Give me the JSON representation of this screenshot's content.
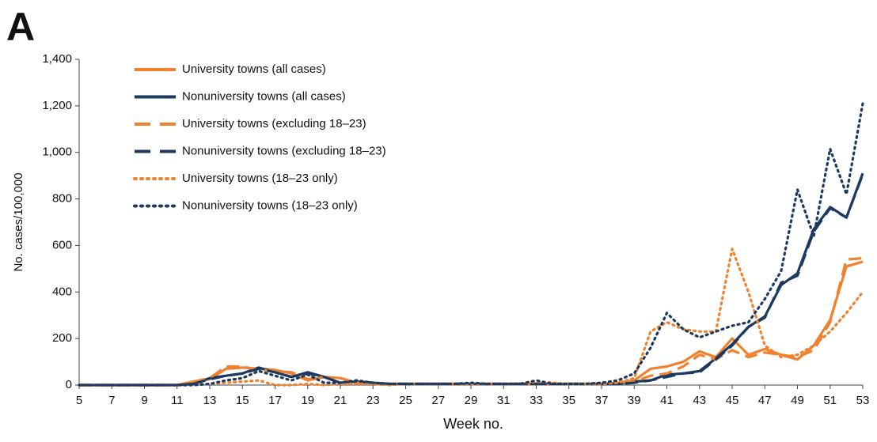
{
  "chart_data": {
    "type": "line",
    "panel_label": "A",
    "xlabel": "Week no.",
    "ylabel": "No. cases/100,000",
    "x": [
      5,
      6,
      7,
      8,
      9,
      10,
      11,
      12,
      13,
      14,
      15,
      16,
      17,
      18,
      19,
      20,
      21,
      22,
      23,
      24,
      25,
      26,
      27,
      28,
      29,
      30,
      31,
      32,
      33,
      34,
      35,
      36,
      37,
      38,
      39,
      40,
      41,
      42,
      43,
      44,
      45,
      46,
      47,
      48,
      49,
      50,
      51,
      52,
      53
    ],
    "xlim": [
      5,
      53
    ],
    "xticks": [
      5,
      7,
      9,
      11,
      13,
      15,
      17,
      19,
      21,
      23,
      25,
      27,
      29,
      31,
      33,
      35,
      37,
      39,
      41,
      43,
      45,
      47,
      49,
      51,
      53
    ],
    "ylim": [
      0,
      1400
    ],
    "yticks": [
      0,
      200,
      400,
      600,
      800,
      {
        "value": 1000,
        "label": "1,000"
      },
      {
        "value": 1200,
        "label": "1,200"
      },
      {
        "value": 1400,
        "label": "1,400"
      }
    ],
    "legend": "upper-left",
    "series": [
      {
        "name": "University towns (all cases)",
        "color": "#f0822f",
        "dash": "solid",
        "values": [
          0,
          0,
          0,
          0,
          0,
          0,
          0,
          15,
          25,
          70,
          75,
          70,
          65,
          50,
          20,
          35,
          30,
          10,
          10,
          5,
          5,
          5,
          5,
          5,
          5,
          5,
          5,
          5,
          5,
          5,
          5,
          5,
          5,
          10,
          20,
          70,
          80,
          100,
          145,
          120,
          200,
          130,
          155,
          130,
          110,
          170,
          280,
          510,
          530
        ]
      },
      {
        "name": "Nonuniversity towns (all cases)",
        "color": "#1c3a60",
        "dash": "solid",
        "values": [
          0,
          0,
          0,
          0,
          0,
          0,
          0,
          5,
          30,
          40,
          50,
          75,
          55,
          35,
          55,
          35,
          10,
          15,
          10,
          5,
          5,
          5,
          5,
          5,
          5,
          5,
          5,
          5,
          5,
          5,
          5,
          5,
          5,
          5,
          15,
          20,
          45,
          50,
          60,
          115,
          175,
          250,
          295,
          430,
          480,
          670,
          765,
          720,
          910
        ]
      },
      {
        "name": "University towns (excluding 18–23)",
        "color": "#f0822f",
        "dash": "dashed",
        "values": [
          0,
          0,
          0,
          0,
          0,
          0,
          0,
          15,
          30,
          80,
          80,
          65,
          60,
          55,
          25,
          35,
          30,
          10,
          10,
          5,
          5,
          5,
          5,
          5,
          5,
          5,
          5,
          5,
          5,
          5,
          5,
          5,
          5,
          10,
          15,
          40,
          50,
          80,
          130,
          110,
          150,
          120,
          140,
          130,
          120,
          150,
          270,
          540,
          545
        ]
      },
      {
        "name": "Nonuniversity towns (excluding 18–23)",
        "color": "#1c3a60",
        "dash": "dashed",
        "values": [
          0,
          0,
          0,
          0,
          0,
          0,
          0,
          5,
          25,
          40,
          50,
          70,
          55,
          35,
          50,
          35,
          10,
          15,
          10,
          5,
          5,
          5,
          5,
          5,
          5,
          5,
          5,
          5,
          5,
          5,
          5,
          5,
          5,
          5,
          10,
          20,
          35,
          50,
          55,
          110,
          170,
          250,
          290,
          440,
          470,
          660,
          760,
          720,
          905
        ]
      },
      {
        "name": "University towns (18–23 only)",
        "color": "#f0822f",
        "dash": "dotted",
        "values": [
          0,
          0,
          0,
          0,
          0,
          0,
          0,
          0,
          5,
          10,
          15,
          20,
          0,
          0,
          5,
          0,
          5,
          5,
          5,
          0,
          5,
          5,
          5,
          5,
          5,
          5,
          5,
          5,
          15,
          10,
          5,
          5,
          5,
          10,
          30,
          230,
          270,
          240,
          230,
          230,
          585,
          400,
          170,
          120,
          130,
          170,
          230,
          310,
          400
        ]
      },
      {
        "name": "Nonuniversity towns (18–23 only)",
        "color": "#1c3a60",
        "dash": "dotted",
        "values": [
          0,
          0,
          0,
          0,
          0,
          0,
          0,
          0,
          5,
          20,
          30,
          60,
          40,
          20,
          45,
          10,
          10,
          20,
          10,
          5,
          5,
          5,
          5,
          5,
          10,
          5,
          5,
          5,
          20,
          5,
          5,
          5,
          10,
          20,
          50,
          160,
          310,
          240,
          205,
          230,
          255,
          270,
          370,
          490,
          840,
          640,
          1015,
          820,
          1210
        ]
      }
    ]
  }
}
